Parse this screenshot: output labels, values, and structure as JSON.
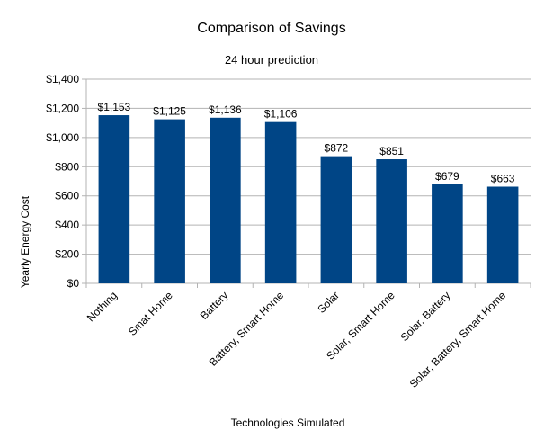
{
  "chart_data": {
    "type": "bar",
    "title": "Comparison of Savings",
    "subtitle": "24 hour prediction",
    "xlabel": "Technologies Simulated",
    "ylabel": "Yearly Energy Cost",
    "categories": [
      "Nothing",
      "Smat Home",
      "Battery",
      "Battery, Smart Home",
      "Solar",
      "Solar, Smart Home",
      "Solar, Battery",
      "Solar, Battery, Smart Home"
    ],
    "values": [
      1153,
      1125,
      1136,
      1106,
      872,
      851,
      679,
      663
    ],
    "data_labels": [
      "$1,153",
      "$1,125",
      "$1,136",
      "$1,106",
      "$872",
      "$851",
      "$679",
      "$663"
    ],
    "ylim": [
      0,
      1400
    ],
    "yticks": [
      0,
      200,
      400,
      600,
      800,
      1000,
      1200,
      1400
    ],
    "ytick_labels": [
      "$0",
      "$200",
      "$400",
      "$600",
      "$800",
      "$1,000",
      "$1,200",
      "$1,400"
    ],
    "grid": true,
    "legend": "none",
    "bar_color": "#004586",
    "grid_color": "#b3b3b3"
  }
}
